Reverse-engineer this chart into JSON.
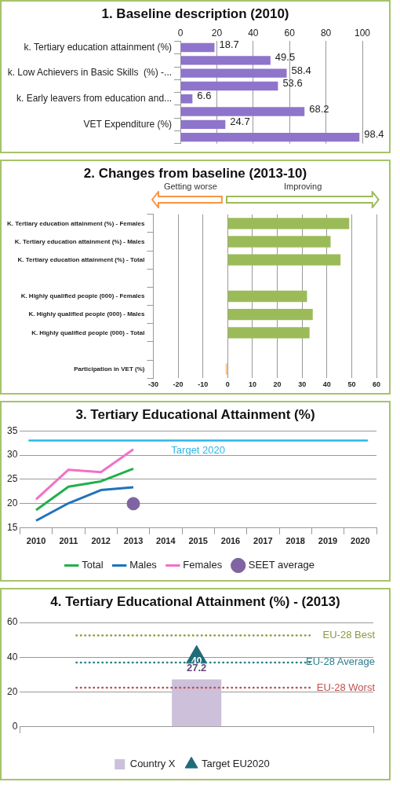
{
  "chart_data": [
    {
      "type": "bar",
      "orientation": "horizontal",
      "title": "1. Baseline description  (2010)",
      "categories": [
        "k. Tertiary education attainment (%)",
        null,
        "k. Low Achievers in Basic Skills  (%) -...",
        null,
        "k. Early leavers from education and...",
        null,
        "VET Expenditure (%)",
        null
      ],
      "values": [
        18.7,
        49.5,
        58.4,
        53.6,
        6.6,
        68.2,
        24.7,
        98.4
      ],
      "color": "#8f74cc",
      "x2lim": [
        0,
        100
      ],
      "x2ticks": [
        0,
        20,
        40,
        60,
        80,
        100
      ],
      "grid": "x",
      "data_labels": true
    },
    {
      "type": "bar",
      "orientation": "horizontal",
      "title": "2. Changes from baseline (2013-10)",
      "annotations": [
        "Getting worse",
        "Improving"
      ],
      "categories": [
        "K. Tertiary education attainment (%) - Females",
        "K. Tertiary education attainment (%) - Males",
        "K. Tertiary education attainment (%) - Total",
        null,
        "K. Highly qualified people (000) - Females",
        "K. Highly qualified people (000) - Males",
        "K. Highly qualified people (000) - Total",
        null,
        "Participation in VET (%)"
      ],
      "values": [
        49,
        41.5,
        45.5,
        null,
        32,
        34.3,
        33,
        null,
        -0.8
      ],
      "colors": [
        "#9bbb59",
        "#9bbb59",
        "#9bbb59",
        "#9bbb59",
        "#9bbb59",
        "#9bbb59",
        "#9bbb59",
        "#9bbb59",
        "#f9c090"
      ],
      "xlim": [
        -30,
        60
      ],
      "xticks": [
        -30,
        -20,
        -10,
        0,
        10,
        20,
        30,
        40,
        50,
        60
      ],
      "grid": "x"
    },
    {
      "type": "line",
      "title": "3. Tertiary Educational Attainment (%)",
      "categories": [
        "2010",
        "2011",
        "2012",
        "2013",
        "2014",
        "2015",
        "2016",
        "2017",
        "2018",
        "2019",
        "2020"
      ],
      "series": [
        {
          "name": "Total",
          "color": "#22b04b",
          "values": [
            18.7,
            23.5,
            24.6,
            27.2,
            null,
            null,
            null,
            null,
            null,
            null,
            null
          ]
        },
        {
          "name": "Males",
          "color": "#1f72bd",
          "values": [
            16.5,
            20.1,
            22.8,
            23.4,
            null,
            null,
            null,
            null,
            null,
            null,
            null
          ]
        },
        {
          "name": "Females",
          "color": "#f270c8",
          "values": [
            20.9,
            27,
            26.5,
            31.2,
            null,
            null,
            null,
            null,
            null,
            null,
            null
          ]
        },
        {
          "name": "SEET average",
          "type": "scatter",
          "color": "#8064a2",
          "values": [
            null,
            null,
            null,
            20,
            null,
            null,
            null,
            null,
            null,
            null,
            null
          ]
        }
      ],
      "ylim": [
        15,
        35
      ],
      "yticks": [
        15,
        20,
        25,
        30,
        35
      ],
      "grid": "y",
      "legend": "bottom",
      "ref_lines": [
        {
          "axis": "y",
          "value": 33,
          "label": "Target 2020",
          "color": "#2db6e8"
        }
      ]
    },
    {
      "type": "bar",
      "title": "4. Tertiary Educational Attainment (%) - (2013)",
      "categories": [
        null
      ],
      "series": [
        {
          "name": "Country X",
          "color": "#ccc0da",
          "values": [
            27.2
          ]
        },
        {
          "name": "Target EU2020",
          "type": "scatter",
          "marker": "triangle",
          "color": "#1f6c78",
          "values": [
            40
          ]
        }
      ],
      "ylim": [
        0,
        60
      ],
      "yticks": [
        0,
        20,
        40,
        60
      ],
      "grid": "y",
      "legend": "bottom",
      "data_labels": true,
      "ref_lines": [
        {
          "axis": "y",
          "value": 52.5,
          "label": "EU-28 Best",
          "color": "#8a9a3b",
          "line_style": "dotted"
        },
        {
          "axis": "y",
          "value": 37,
          "label": "EU-28 Average",
          "color": "#2f7f8e",
          "line_style": "dotted"
        },
        {
          "axis": "y",
          "value": 22.5,
          "label": "EU-28 Worst",
          "color": "#c0504d",
          "line_style": "dotted"
        }
      ]
    }
  ]
}
